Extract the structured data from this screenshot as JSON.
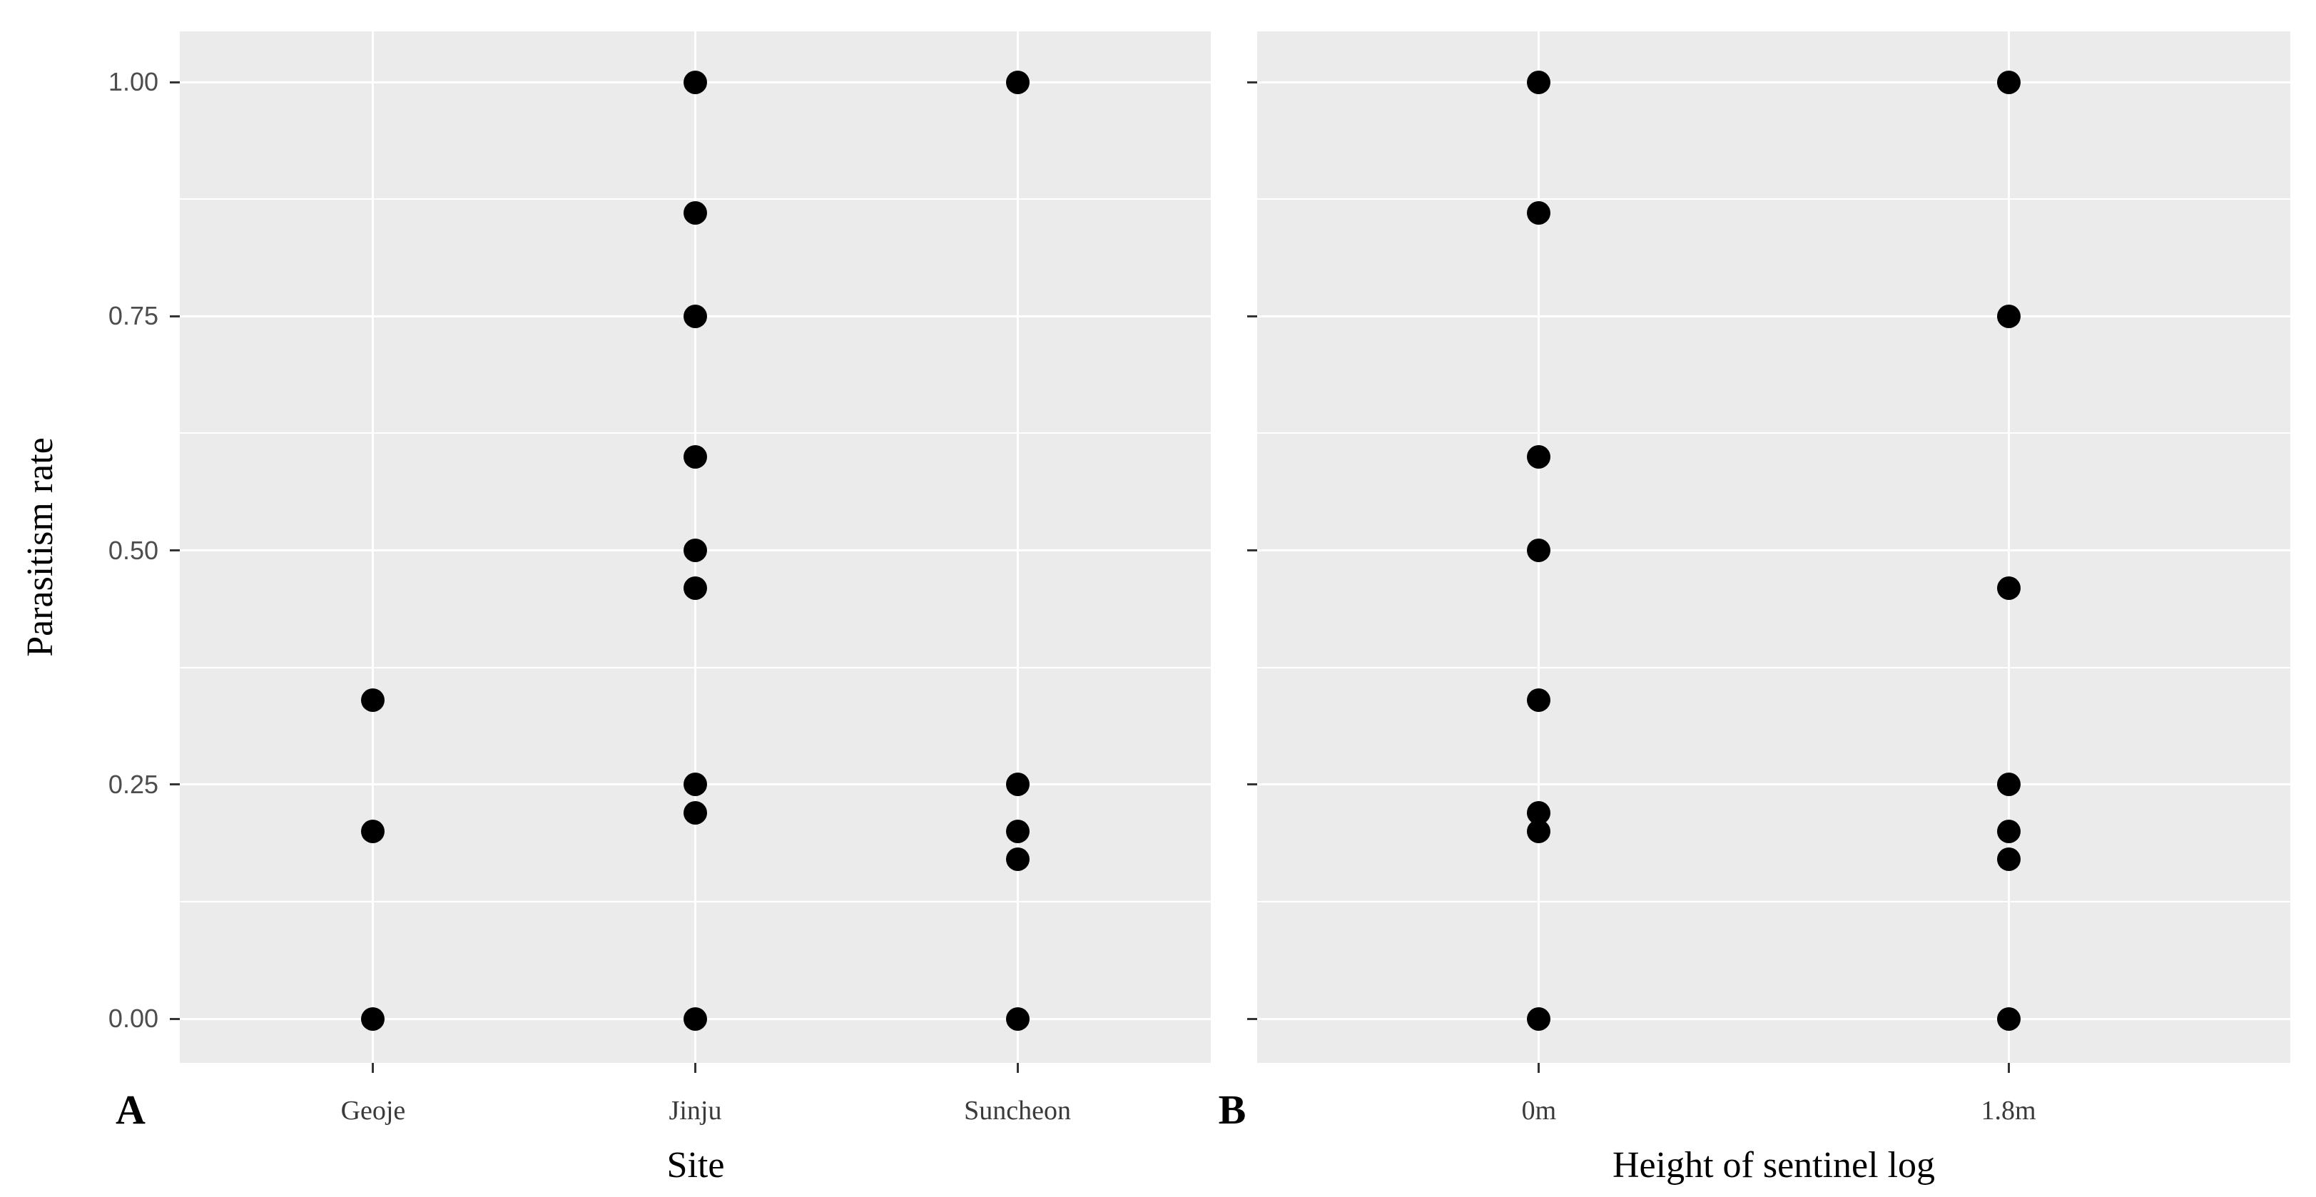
{
  "figure": {
    "ylabel": "Parasitism rate",
    "y_tick_labels": [
      "1.00",
      "0.75",
      "0.50",
      "0.25",
      "0.00"
    ],
    "y_tick_values": [
      1.0,
      0.75,
      0.5,
      0.25,
      0.0
    ]
  },
  "style": {
    "panel_background": "#EBEBEB",
    "grid_color": "#FFFFFF",
    "point_color": "#000000",
    "tick_mark_color": "#333333",
    "tick_label_color": "#4D4D4D",
    "axis_title_color": "#000000",
    "figure_background": "#FFFFFF"
  },
  "chart_data": [
    {
      "type": "scatter",
      "panel_label": "A",
      "xlabel": "Site",
      "ylabel": "Parasitism rate",
      "ylim": [
        0,
        1
      ],
      "y_major_breaks": [
        0.0,
        0.25,
        0.5,
        0.75,
        1.0
      ],
      "y_minor_breaks": [
        0.125,
        0.375,
        0.625,
        0.875
      ],
      "grid": "on",
      "legend": "none",
      "categories": [
        "Geoje",
        "Jinju",
        "Suncheon"
      ],
      "series": [
        {
          "name": "Geoje",
          "values": [
            0.34,
            0.2,
            0.0
          ]
        },
        {
          "name": "Jinju",
          "values": [
            1.0,
            0.86,
            0.75,
            0.6,
            0.5,
            0.46,
            0.25,
            0.22,
            0.0
          ]
        },
        {
          "name": "Suncheon",
          "values": [
            1.0,
            0.25,
            0.2,
            0.17,
            0.0
          ]
        }
      ]
    },
    {
      "type": "scatter",
      "panel_label": "B",
      "xlabel": "Height of sentinel log",
      "ylabel": "Parasitism rate",
      "ylim": [
        0,
        1
      ],
      "y_major_breaks": [
        0.0,
        0.25,
        0.5,
        0.75,
        1.0
      ],
      "y_minor_breaks": [
        0.125,
        0.375,
        0.625,
        0.875
      ],
      "grid": "on",
      "legend": "none",
      "categories": [
        "0m",
        "1.8m"
      ],
      "series": [
        {
          "name": "0m",
          "values": [
            1.0,
            0.86,
            0.6,
            0.5,
            0.34,
            0.22,
            0.2,
            0.0
          ]
        },
        {
          "name": "1.8m",
          "values": [
            1.0,
            0.75,
            0.46,
            0.25,
            0.2,
            0.17,
            0.0
          ]
        }
      ]
    }
  ]
}
